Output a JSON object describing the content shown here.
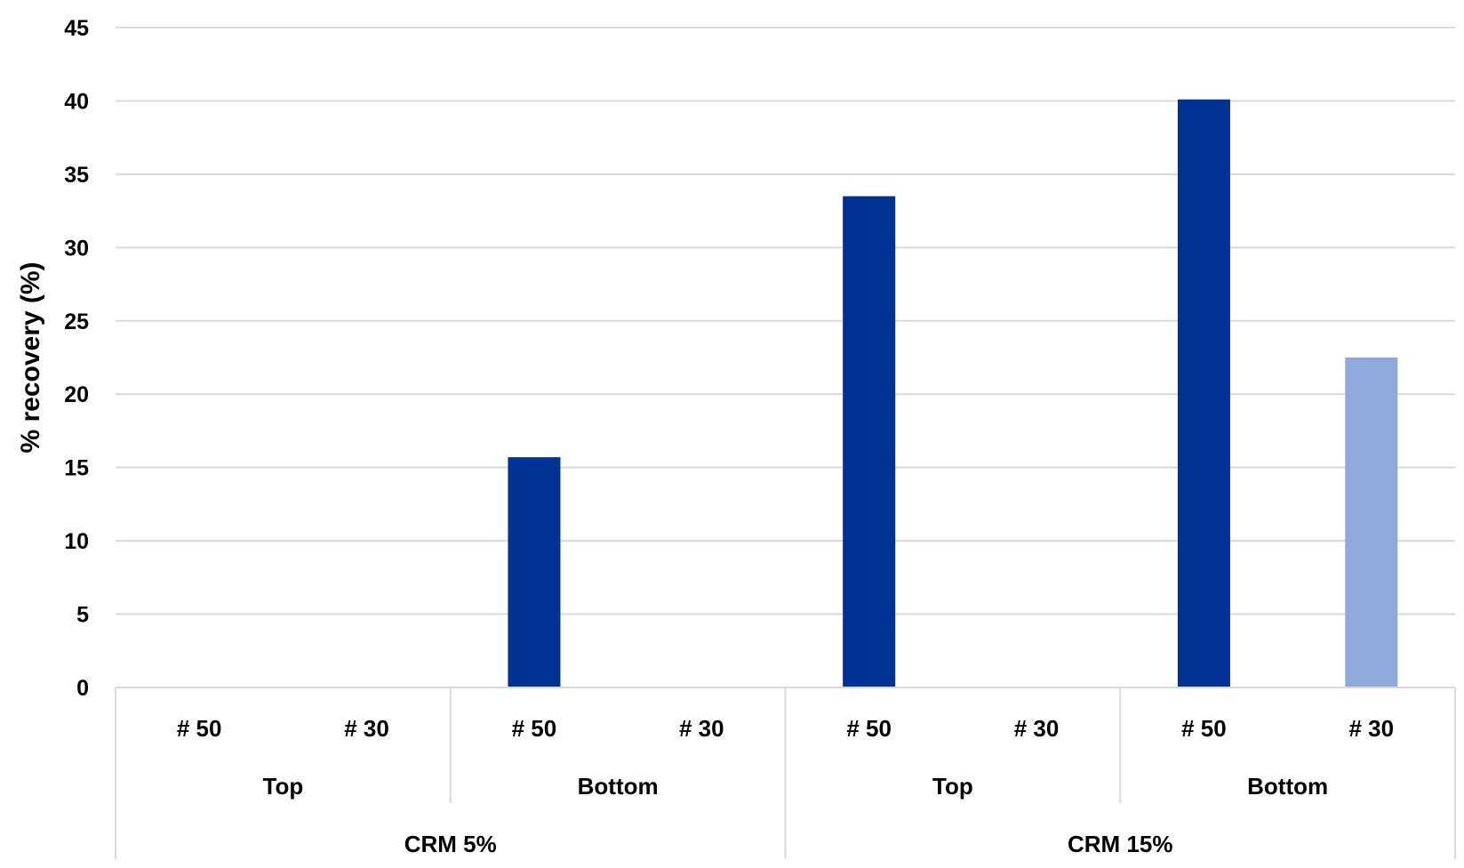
{
  "chart_data": {
    "type": "bar",
    "ylabel": "% recovery  (%)",
    "ylim": [
      0,
      45
    ],
    "yticks": [
      0,
      5,
      10,
      15,
      20,
      25,
      30,
      35,
      40,
      45
    ],
    "grid": true,
    "categories": [
      {
        "sieve": "# 50",
        "position": "Top",
        "crm": "CRM 5%",
        "value": 0,
        "color": "#003296"
      },
      {
        "sieve": "# 30",
        "position": "Top",
        "crm": "CRM 5%",
        "value": 0,
        "color": "#8eaadb"
      },
      {
        "sieve": "# 50",
        "position": "Bottom",
        "crm": "CRM 5%",
        "value": 15.7,
        "color": "#003296"
      },
      {
        "sieve": "# 30",
        "position": "Bottom",
        "crm": "CRM 5%",
        "value": 0,
        "color": "#8eaadb"
      },
      {
        "sieve": "# 50",
        "position": "Top",
        "crm": "CRM 15%",
        "value": 33.5,
        "color": "#003296"
      },
      {
        "sieve": "# 30",
        "position": "Top",
        "crm": "CRM 15%",
        "value": 0,
        "color": "#8eaadb"
      },
      {
        "sieve": "# 50",
        "position": "Bottom",
        "crm": "CRM 15%",
        "value": 40.1,
        "color": "#003296"
      },
      {
        "sieve": "# 30",
        "position": "Bottom",
        "crm": "CRM 15%",
        "value": 22.5,
        "color": "#8eaadb"
      }
    ],
    "position_groups": [
      "Top",
      "Bottom",
      "Top",
      "Bottom"
    ],
    "crm_groups": [
      "CRM 5%",
      "CRM 15%"
    ]
  }
}
